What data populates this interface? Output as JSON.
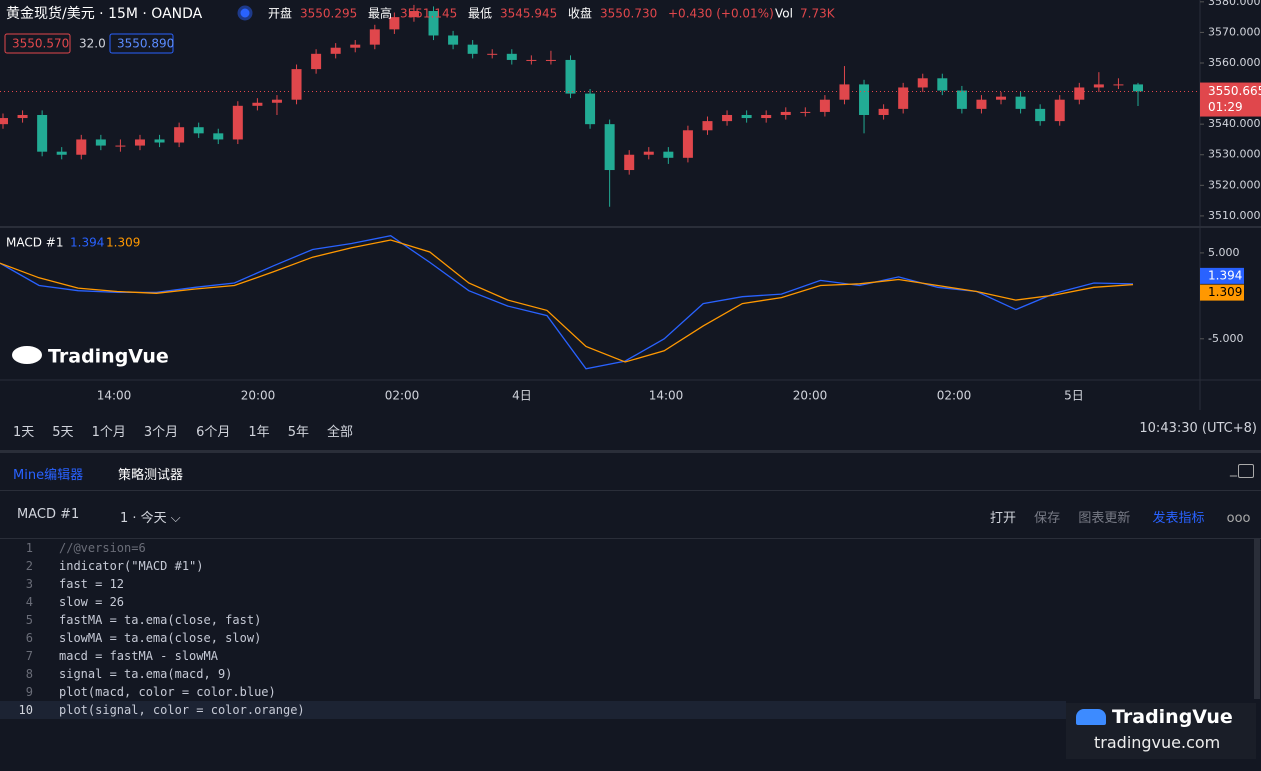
{
  "header": {
    "symbol": "黄金现货/美元 · 15M · OANDA",
    "fields": [
      {
        "label": "开盘",
        "value": "3550.295"
      },
      {
        "label": "最高",
        "value": "3551.145"
      },
      {
        "label": "最低",
        "value": "3545.945"
      },
      {
        "label": "收盘",
        "value": "3550.730"
      },
      {
        "label": "",
        "value": "+0.430 (+0.01%)"
      },
      {
        "label": "Vol",
        "value": "7.73K"
      }
    ],
    "bid": "3550.570",
    "spread": "32.0",
    "ask": "3550.890"
  },
  "price_chart": {
    "type": "candlestick",
    "up_color": "#e0474c",
    "down_color": "#22ab94",
    "ylim": [
      3506.7,
      3580.6
    ],
    "yticks": [
      {
        "value": 3510,
        "label": "3510.000"
      },
      {
        "value": 3520,
        "label": "3520.000"
      },
      {
        "value": 3530,
        "label": "3530.000"
      },
      {
        "value": 3540,
        "label": "3540.000"
      },
      {
        "value": 3550,
        "label": "3550.000"
      },
      {
        "value": 3560,
        "label": "3560.000"
      },
      {
        "value": 3570,
        "label": "3570.000"
      },
      {
        "value": 3580,
        "label": "3580.000"
      }
    ],
    "last_price": {
      "value": 3550.665,
      "label": "3550.665"
    },
    "countdown": "01:29",
    "candles": [
      [
        3540,
        3543.5,
        3538.5,
        3542
      ],
      [
        3542,
        3544.5,
        3540.5,
        3543
      ],
      [
        3543,
        3544.5,
        3529.5,
        3531
      ],
      [
        3531,
        3532.5,
        3528.5,
        3530
      ],
      [
        3530,
        3536.5,
        3528.5,
        3535
      ],
      [
        3535,
        3536.5,
        3531.5,
        3533
      ],
      [
        3533,
        3535,
        3531,
        3533
      ],
      [
        3533,
        3536.5,
        3531.5,
        3535
      ],
      [
        3535,
        3536.5,
        3532.5,
        3534
      ],
      [
        3534,
        3540.5,
        3532.5,
        3539
      ],
      [
        3539,
        3540.5,
        3535.5,
        3537
      ],
      [
        3537,
        3538.5,
        3533.5,
        3535
      ],
      [
        3535,
        3547.5,
        3533.5,
        3546
      ],
      [
        3546,
        3548.5,
        3544.5,
        3547
      ],
      [
        3547,
        3549.5,
        3543,
        3548
      ],
      [
        3548,
        3559.5,
        3546.5,
        3558
      ],
      [
        3558,
        3564.5,
        3556.5,
        3563
      ],
      [
        3563,
        3566.5,
        3561.5,
        3565
      ],
      [
        3565,
        3567.5,
        3563.5,
        3566
      ],
      [
        3566,
        3572.5,
        3564.5,
        3571
      ],
      [
        3571,
        3576.5,
        3569.5,
        3575
      ],
      [
        3575,
        3579,
        3573.5,
        3577
      ],
      [
        3577,
        3578.5,
        3567.5,
        3569
      ],
      [
        3569,
        3570.5,
        3564.5,
        3566
      ],
      [
        3566,
        3567.5,
        3561.5,
        3563
      ],
      [
        3563,
        3564.5,
        3561.5,
        3563
      ],
      [
        3563,
        3564.5,
        3559.5,
        3561
      ],
      [
        3561,
        3562.5,
        3559.5,
        3561
      ],
      [
        3561,
        3564,
        3559.5,
        3561
      ],
      [
        3561,
        3562.5,
        3548.5,
        3550
      ],
      [
        3550,
        3551.5,
        3538.5,
        3540
      ],
      [
        3540,
        3541.5,
        3513,
        3525
      ],
      [
        3525,
        3531.5,
        3523.5,
        3530
      ],
      [
        3530,
        3532.5,
        3528.5,
        3531
      ],
      [
        3531,
        3532.5,
        3527,
        3529
      ],
      [
        3529,
        3539.5,
        3527.5,
        3538
      ],
      [
        3538,
        3542.5,
        3536.5,
        3541
      ],
      [
        3541,
        3544.5,
        3539.5,
        3543
      ],
      [
        3543,
        3544.5,
        3540.5,
        3542
      ],
      [
        3542,
        3544.5,
        3540.5,
        3543
      ],
      [
        3543,
        3545.5,
        3541.5,
        3544
      ],
      [
        3544,
        3545.5,
        3542.5,
        3544
      ],
      [
        3544,
        3549.5,
        3542.5,
        3548
      ],
      [
        3548,
        3559,
        3546.5,
        3553
      ],
      [
        3553,
        3554.5,
        3537,
        3543
      ],
      [
        3543,
        3546.5,
        3541.5,
        3545
      ],
      [
        3545,
        3553.5,
        3543.5,
        3552
      ],
      [
        3552,
        3556.5,
        3550.5,
        3555
      ],
      [
        3555,
        3556.5,
        3549.5,
        3551
      ],
      [
        3551,
        3552.5,
        3543.5,
        3545
      ],
      [
        3545,
        3549.5,
        3543.5,
        3548
      ],
      [
        3548,
        3550.5,
        3546.5,
        3549
      ],
      [
        3549,
        3550.5,
        3543.5,
        3545
      ],
      [
        3545,
        3546.5,
        3539.5,
        3541
      ],
      [
        3541,
        3549.5,
        3539.5,
        3548
      ],
      [
        3548,
        3553.5,
        3546.5,
        3552
      ],
      [
        3552,
        3557,
        3550.5,
        3553
      ],
      [
        3553,
        3555,
        3551.5,
        3553
      ],
      [
        3553,
        3553.5,
        3545.945,
        3550.73
      ]
    ]
  },
  "macd_chart": {
    "type": "line",
    "title": "MACD #1",
    "ylim": [
      -9.8,
      7.9
    ],
    "yticks": [
      {
        "value": -5,
        "label": "-5.000"
      },
      {
        "value": 5,
        "label": "5.000"
      }
    ],
    "series": [
      {
        "name": "macd",
        "color": "#2962ff",
        "values": [
          3.8,
          1.2,
          0.6,
          0.4,
          0.4,
          1.0,
          1.5,
          3.5,
          5.4,
          6.1,
          7.0,
          3.9,
          0.6,
          -1.2,
          -2.3,
          -8.5,
          -7.6,
          -5.0,
          -0.9,
          -0.1,
          0.2,
          1.8,
          1.2,
          2.2,
          1.0,
          0.5,
          -1.6,
          0.3,
          1.5,
          1.394
        ],
        "value_label": "1.394"
      },
      {
        "name": "signal",
        "color": "#ff9800",
        "values": [
          3.8,
          2.1,
          0.9,
          0.5,
          0.3,
          0.8,
          1.2,
          2.8,
          4.5,
          5.6,
          6.5,
          5.1,
          1.5,
          -0.5,
          -1.7,
          -5.9,
          -7.7,
          -6.4,
          -3.5,
          -0.9,
          -0.2,
          1.2,
          1.4,
          1.9,
          1.2,
          0.5,
          -0.5,
          0.1,
          1.0,
          1.309
        ],
        "value_label": "1.309"
      }
    ]
  },
  "time_axis": [
    "14:00",
    "20:00",
    "02:00",
    "4日",
    "14:00",
    "20:00",
    "02:00",
    "5日"
  ],
  "ranges": [
    "1天",
    "5天",
    "1个月",
    "3个月",
    "6个月",
    "1年",
    "5年",
    "全部"
  ],
  "clock": "10:43:30 (UTC+8)",
  "watermark": "TradingVue",
  "tabs": [
    "Mine编辑器",
    "策略测试器"
  ],
  "toolbar": {
    "script": "MACD #1",
    "version": "1 · 今天",
    "actions": [
      "打开",
      "保存",
      "图表更新",
      "发表指标"
    ]
  },
  "code": [
    "//@version=6",
    "indicator(\"MACD #1\")",
    "fast = 12",
    "slow = 26",
    "fastMA = ta.ema(close, fast)",
    "slowMA = ta.ema(close, slow)",
    "macd = fastMA - slowMA",
    "signal = ta.ema(macd, 9)",
    "plot(macd, color = color.blue)",
    "plot(signal, color = color.orange)"
  ],
  "logo": {
    "name": "TradingVue",
    "url": "tradingvue.com"
  }
}
